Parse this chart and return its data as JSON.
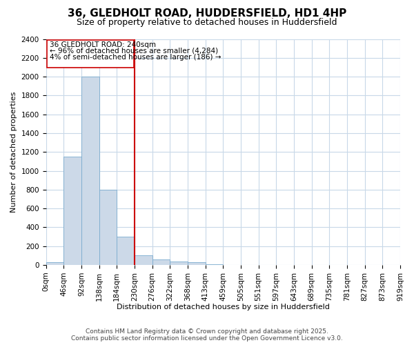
{
  "title": "36, GLEDHOLT ROAD, HUDDERSFIELD, HD1 4HP",
  "subtitle": "Size of property relative to detached houses in Huddersfield",
  "xlabel": "Distribution of detached houses by size in Huddersfield",
  "ylabel": "Number of detached properties",
  "footnote": "Contains HM Land Registry data © Crown copyright and database right 2025.\nContains public sector information licensed under the Open Government Licence v3.0.",
  "bin_labels": [
    "0sqm",
    "46sqm",
    "92sqm",
    "138sqm",
    "184sqm",
    "230sqm",
    "276sqm",
    "322sqm",
    "368sqm",
    "413sqm",
    "459sqm",
    "505sqm",
    "551sqm",
    "597sqm",
    "643sqm",
    "689sqm",
    "735sqm",
    "781sqm",
    "827sqm",
    "873sqm",
    "919sqm"
  ],
  "bar_values": [
    30,
    1150,
    2000,
    800,
    300,
    100,
    60,
    40,
    30,
    10,
    0,
    0,
    0,
    0,
    0,
    0,
    0,
    0,
    0,
    0
  ],
  "bar_color": "#ccd9e8",
  "bar_edge_color": "#7aabce",
  "vline_color": "#cc0000",
  "ylim": [
    0,
    2400
  ],
  "yticks": [
    0,
    200,
    400,
    600,
    800,
    1000,
    1200,
    1400,
    1600,
    1800,
    2000,
    2200,
    2400
  ],
  "annotation_title": "36 GLEDHOLT ROAD: 240sqm",
  "annotation_line1": "← 96% of detached houses are smaller (4,284)",
  "annotation_line2": "4% of semi-detached houses are larger (186) →",
  "annotation_box_color": "#cc0000",
  "bg_color": "#ffffff",
  "grid_color": "#c8d8e8",
  "title_fontsize": 11,
  "subtitle_fontsize": 9,
  "axis_label_fontsize": 8,
  "tick_fontsize": 7.5,
  "annotation_fontsize": 7.5,
  "footnote_fontsize": 6.5
}
